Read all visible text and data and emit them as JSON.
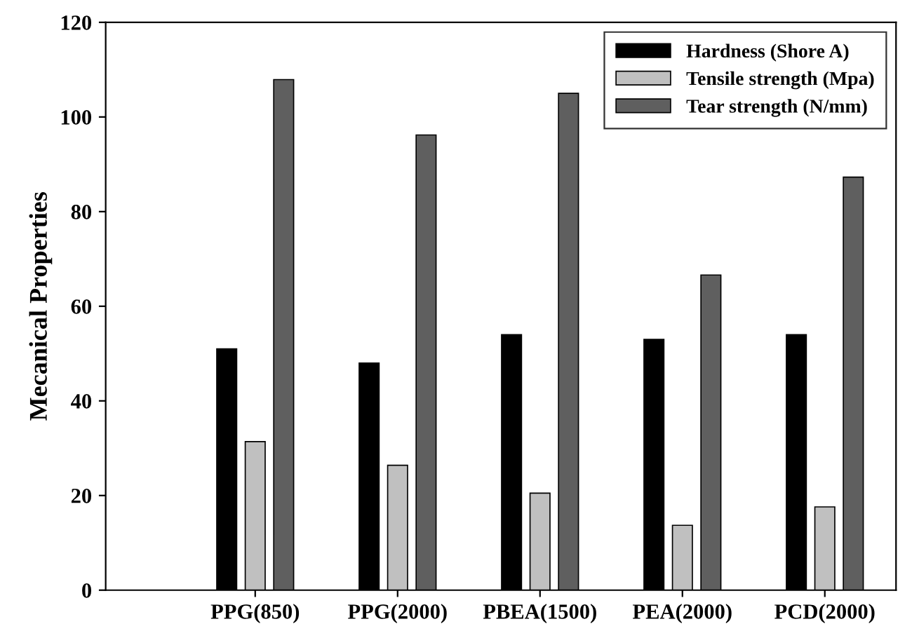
{
  "chart_data": {
    "type": "bar",
    "ylabel": "Mecanical Properties",
    "categories": [
      "PPG(850)",
      "PPG(2000)",
      "PBEA(1500)",
      "PEA(2000)",
      "PCD(2000)"
    ],
    "series": [
      {
        "name": "Hardness (Shore A)",
        "color": "#000000",
        "values": [
          51,
          48,
          54,
          53,
          54
        ]
      },
      {
        "name": "Tensile strength (Mpa)",
        "color": "#c0c0c0",
        "values": [
          31.4,
          26.4,
          20.5,
          13.7,
          17.6
        ]
      },
      {
        "name": "Tear strength (N/mm)",
        "color": "#5f5f5f",
        "values": [
          107.9,
          96.2,
          105,
          66.6,
          87.3
        ]
      }
    ],
    "ylim": [
      0,
      120
    ],
    "yticks": [
      0,
      20,
      40,
      60,
      80,
      100,
      120
    ],
    "grid": false,
    "legend": "top right"
  }
}
